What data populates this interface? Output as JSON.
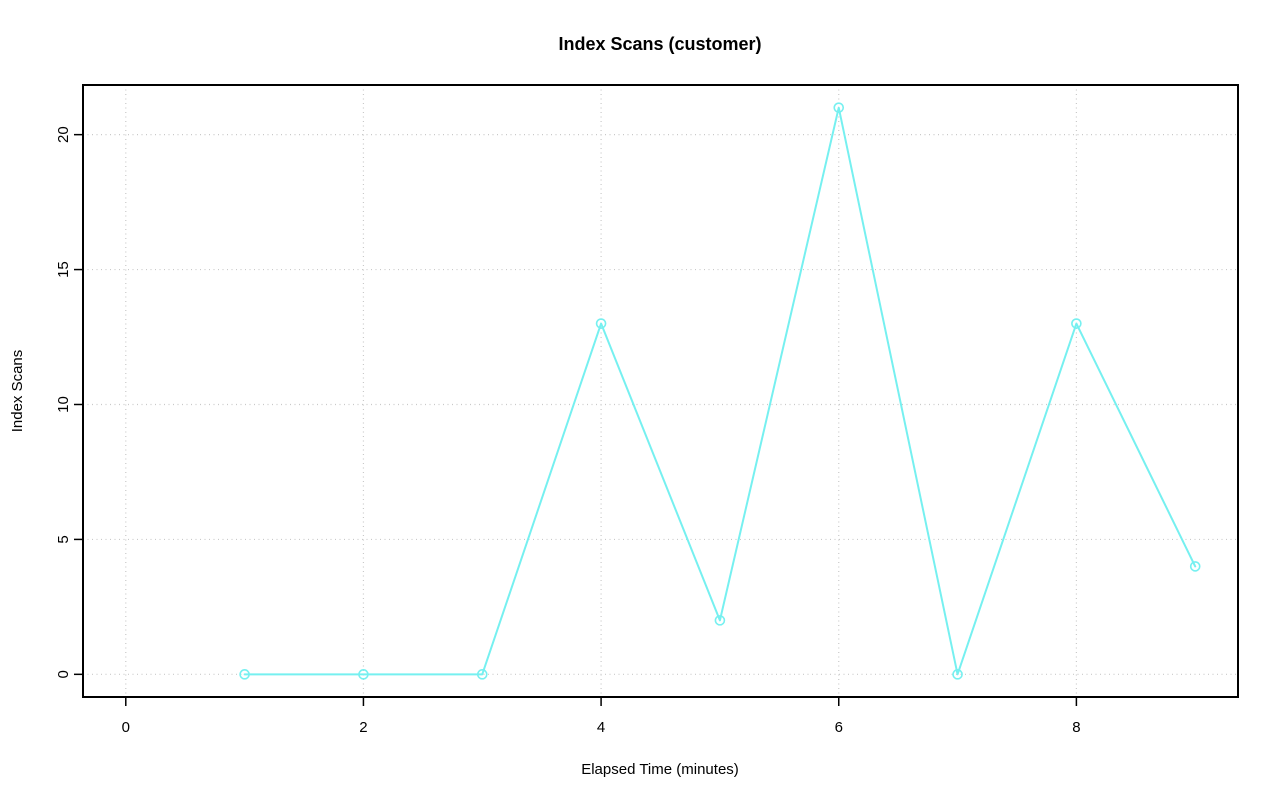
{
  "figure": {
    "background_color": "#ffffff"
  },
  "chart_data": {
    "type": "line",
    "title": "Index Scans (customer)",
    "xlabel": "Elapsed Time (minutes)",
    "ylabel": "Index Scans",
    "x": [
      1,
      2,
      3,
      4,
      5,
      6,
      7,
      8,
      9
    ],
    "y": [
      0,
      0,
      0,
      13,
      2,
      21,
      0,
      13,
      4
    ],
    "x_ticks": [
      0,
      2,
      4,
      6,
      8
    ],
    "y_ticks": [
      0,
      5,
      10,
      15,
      20
    ],
    "xlim": [
      -0.36,
      9.36
    ],
    "ylim": [
      -0.84,
      21.84
    ],
    "grid": true,
    "grid_style": "dotted",
    "legend_position": "none",
    "marker": "open-circle",
    "line_color": "#76f0f0",
    "grid_color": "#c9c9c9",
    "box_color": "#000000",
    "text_color": "#000000"
  }
}
